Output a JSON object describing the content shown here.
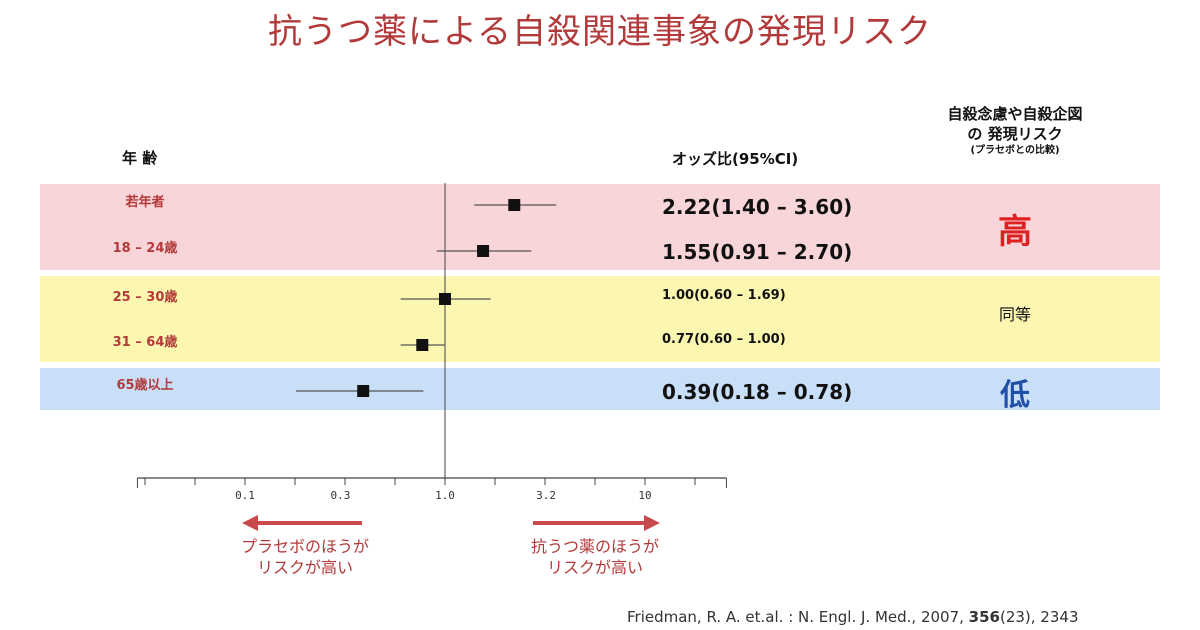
{
  "title": "抗うつ薬による自殺関連事象の発現リスク",
  "header": {
    "age": "年 齢",
    "odds": "オッズ比(95%CI)",
    "risk_line1": "自殺念慮や自殺企図",
    "risk_line2": "の 発現リスク",
    "risk_line3": "(プラセボとの比較)"
  },
  "colors": {
    "title": "#b23a3a",
    "band_high": "#f8d5d8",
    "band_same": "#fbf7b0",
    "band_low": "#c9dff7",
    "high_text": "#e02020",
    "low_text": "#1f4fa8",
    "arrow": "#c94a4a"
  },
  "risk_labels": {
    "high": "高",
    "same": "同等",
    "low": "低"
  },
  "chart_data": {
    "type": "forest",
    "scale": "log",
    "xlim": [
      0.03,
      30
    ],
    "ticks": [
      "0.1",
      "0.3",
      "1.0",
      "3.2",
      "10"
    ],
    "tick_values": [
      0.1,
      0.3,
      1.0,
      3.2,
      10
    ],
    "reference_line": 1.0,
    "rows": [
      {
        "age": "若年者",
        "or": 2.22,
        "lo": 1.4,
        "hi": 3.6,
        "label": "2.22(1.40 – 3.60)",
        "size": "big"
      },
      {
        "age": "18 – 24歳",
        "or": 1.55,
        "lo": 0.91,
        "hi": 2.7,
        "label": "1.55(0.91 – 2.70)",
        "size": "big"
      },
      {
        "age": "25 – 30歳",
        "or": 1.0,
        "lo": 0.6,
        "hi": 1.69,
        "label": "1.00(0.60 – 1.69)",
        "size": "small"
      },
      {
        "age": "31 – 64歳",
        "or": 0.77,
        "lo": 0.6,
        "hi": 1.0,
        "label": "0.77(0.60 – 1.00)",
        "size": "small"
      },
      {
        "age": "65歳以上",
        "or": 0.39,
        "lo": 0.18,
        "hi": 0.78,
        "label": "0.39(0.18 – 0.78)",
        "size": "big"
      }
    ]
  },
  "arrows": {
    "left_line1": "プラセボのほうが",
    "left_line2": "リスクが高い",
    "right_line1": "抗うつ薬のほうが",
    "right_line2": "リスクが高い"
  },
  "citation": {
    "prefix": "Friedman, R. A. et.al. : N. Engl. J. Med., 2007,",
    "volume": "356",
    "suffix": "(23), 2343"
  }
}
